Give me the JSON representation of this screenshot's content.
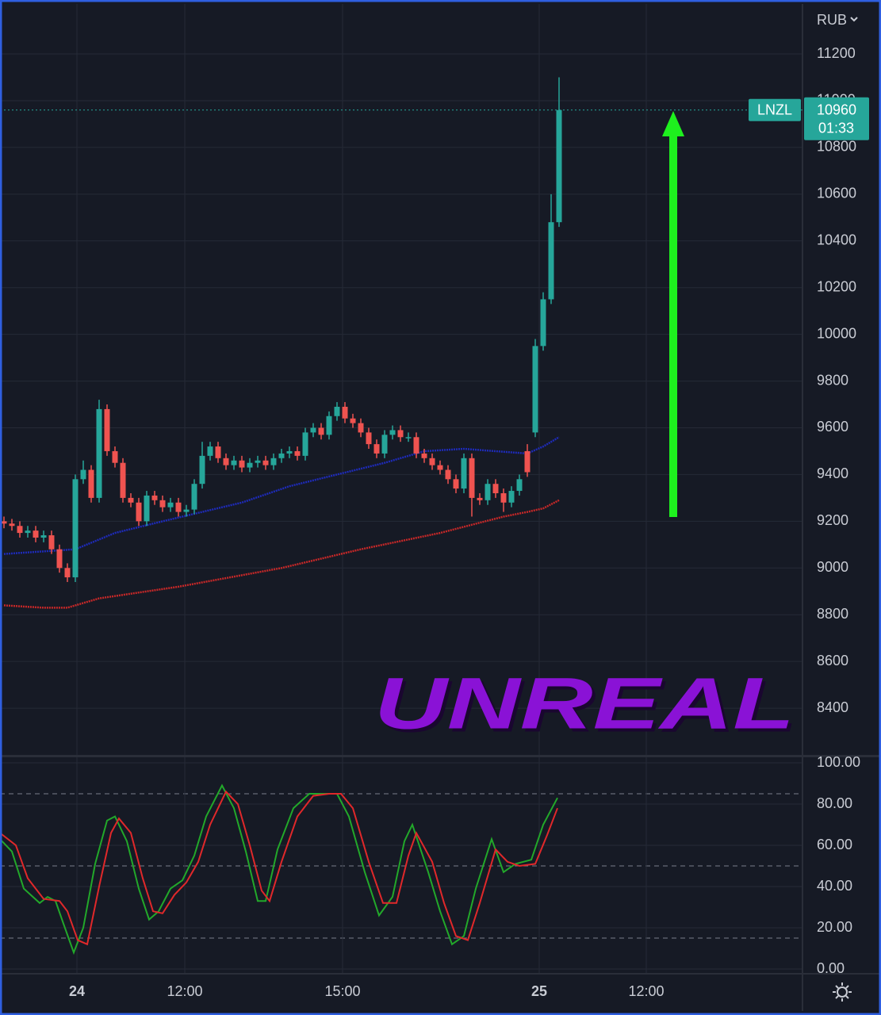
{
  "chart_data": [
    {
      "type": "candlestick",
      "symbol": "LNZL",
      "currency": "RUB",
      "last_price": 10960,
      "countdown": "01:33",
      "annotation": "UNREAL",
      "up_color": "#26a69a",
      "down_color": "#ef5350",
      "xlim": [
        -0.5,
        100.7
      ],
      "ylim": [
        8200,
        11414
      ],
      "yticks": [
        8400,
        8600,
        8800,
        9000,
        9200,
        9400,
        9600,
        9800,
        10000,
        10200,
        10400,
        10600,
        10800,
        11000,
        11200
      ],
      "open": [
        9200,
        9190,
        9180,
        9150,
        9160,
        9130,
        9140,
        9080,
        9000,
        8960,
        9380,
        9420,
        9300,
        9680,
        9500,
        9450,
        9300,
        9280,
        9200,
        9310,
        9290,
        9260,
        9280,
        9240,
        9250,
        9360,
        9480,
        9520,
        9470,
        9440,
        9460,
        9430,
        9450,
        9460,
        9440,
        9470,
        9490,
        9500,
        9480,
        9580,
        9600,
        9570,
        9650,
        9690,
        9640,
        9620,
        9580,
        9530,
        9490,
        9570,
        9590,
        9560,
        9560,
        9490,
        9470,
        9440,
        9420,
        9380,
        9340,
        9470,
        9300,
        9290,
        9360,
        9320,
        9280,
        9330,
        9500,
        9580,
        9950,
        10150,
        10480
      ],
      "high": [
        9220,
        9210,
        9200,
        9180,
        9180,
        9160,
        9160,
        9100,
        9020,
        9400,
        9460,
        9440,
        9720,
        9700,
        9520,
        9470,
        9320,
        9300,
        9330,
        9330,
        9310,
        9300,
        9300,
        9270,
        9380,
        9540,
        9540,
        9540,
        9490,
        9480,
        9480,
        9470,
        9480,
        9480,
        9490,
        9510,
        9520,
        9520,
        9600,
        9620,
        9620,
        9670,
        9710,
        9710,
        9660,
        9640,
        9600,
        9550,
        9590,
        9610,
        9610,
        9580,
        9580,
        9510,
        9490,
        9460,
        9440,
        9400,
        9490,
        9490,
        9320,
        9380,
        9380,
        9340,
        9350,
        9400,
        9530,
        9980,
        10180,
        10600,
        11100
      ],
      "low": [
        9170,
        9160,
        9130,
        9130,
        9110,
        9110,
        9060,
        8980,
        8940,
        8940,
        9360,
        9280,
        9280,
        9480,
        9430,
        9280,
        9260,
        9180,
        9180,
        9270,
        9240,
        9240,
        9220,
        9220,
        9230,
        9340,
        9460,
        9450,
        9420,
        9420,
        9410,
        9410,
        9430,
        9420,
        9420,
        9450,
        9470,
        9460,
        9460,
        9560,
        9550,
        9550,
        9630,
        9620,
        9600,
        9560,
        9510,
        9470,
        9470,
        9550,
        9540,
        9540,
        9470,
        9450,
        9420,
        9400,
        9360,
        9320,
        9320,
        9220,
        9270,
        9270,
        9300,
        9240,
        9260,
        9310,
        9390,
        9560,
        9930,
        10130,
        10460
      ],
      "close": [
        9190,
        9180,
        9150,
        9160,
        9130,
        9140,
        9080,
        9000,
        8960,
        9380,
        9420,
        9300,
        9680,
        9500,
        9450,
        9300,
        9280,
        9200,
        9310,
        9290,
        9260,
        9280,
        9240,
        9250,
        9360,
        9480,
        9520,
        9470,
        9440,
        9460,
        9430,
        9450,
        9460,
        9440,
        9470,
        9490,
        9500,
        9480,
        9580,
        9600,
        9570,
        9650,
        9690,
        9640,
        9620,
        9580,
        9530,
        9490,
        9570,
        9590,
        9560,
        9560,
        9490,
        9470,
        9440,
        9420,
        9380,
        9340,
        9470,
        9300,
        9290,
        9360,
        9320,
        9280,
        9330,
        9380,
        9410,
        9950,
        10150,
        10480,
        10960
      ],
      "lines": [
        {
          "color": "#1e2bb8",
          "x": [
            0,
            9,
            14,
            20,
            25,
            30,
            36,
            42,
            48,
            53,
            58,
            62,
            66,
            68,
            70
          ],
          "values": [
            9060,
            9080,
            9150,
            9200,
            9240,
            9280,
            9350,
            9400,
            9450,
            9500,
            9510,
            9500,
            9490,
            9520,
            9560
          ]
        },
        {
          "color": "#c62828",
          "x": [
            0,
            5,
            8,
            12,
            22,
            35,
            45,
            55,
            63,
            66,
            68,
            70
          ],
          "values": [
            8840,
            8830,
            8830,
            8870,
            8920,
            9000,
            9080,
            9150,
            9220,
            9240,
            9255,
            9290
          ]
        }
      ]
    },
    {
      "type": "line",
      "xlim": [
        -0.5,
        100.7
      ],
      "ylim": [
        -2.3,
        102.7
      ],
      "yticks": [
        {
          "value": 0,
          "label": "0.00"
        },
        {
          "value": 20,
          "label": "20.00"
        },
        {
          "value": 40,
          "label": "40.00"
        },
        {
          "value": 60,
          "label": "60.00"
        },
        {
          "value": 80,
          "label": "80.00"
        },
        {
          "value": 100,
          "label": "100.00"
        }
      ],
      "levels": [
        85,
        50,
        15
      ],
      "xticks": [
        {
          "value": 9.2,
          "label": "24"
        },
        {
          "value": 22.8,
          "label": "12:00"
        },
        {
          "value": 42.7,
          "label": "15:00"
        },
        {
          "value": 67.5,
          "label": "25"
        },
        {
          "value": 81,
          "label": "12:00"
        }
      ],
      "series": [
        {
          "color": "#22a82a",
          "x": [
            -0.5,
            1,
            2.5,
            4.5,
            5.5,
            6.5,
            7.5,
            8.8,
            10,
            11.5,
            13,
            14,
            15.5,
            17,
            18.3,
            19.5,
            21,
            22.5,
            24,
            25.5,
            27.5,
            29,
            30.5,
            32,
            33,
            34.5,
            36.5,
            38.5,
            40.5,
            42,
            43.5,
            45.5,
            47.3,
            49,
            50.5,
            51.5,
            53.5,
            55,
            56.5,
            58,
            59.5,
            61.5,
            63,
            64.5,
            66.5,
            68,
            69.8
          ],
          "values": [
            63,
            57,
            39,
            32,
            35,
            33,
            22,
            8,
            20,
            51,
            72,
            74,
            62,
            39,
            24,
            28,
            39,
            43,
            55,
            74,
            89,
            78,
            57,
            33,
            33,
            58,
            78,
            85,
            85,
            85,
            74,
            47,
            26,
            35,
            62,
            70,
            47,
            28,
            12,
            16,
            39,
            63,
            47,
            51,
            53,
            70,
            83
          ]
        },
        {
          "color": "#e0282a",
          "x": [
            -0.5,
            1.5,
            3,
            5,
            7,
            8,
            9.3,
            10.5,
            12,
            13.5,
            14.5,
            16,
            17.5,
            18.8,
            20,
            21.5,
            23,
            24.5,
            26,
            28,
            29.5,
            31,
            32.5,
            33.5,
            35,
            37,
            39,
            41,
            42.5,
            44,
            46,
            47.8,
            49.5,
            51,
            52,
            54,
            55.5,
            57,
            58.5,
            60,
            62,
            63.5,
            65,
            67,
            68.5,
            69.8
          ],
          "values": [
            66,
            60,
            44,
            34,
            33,
            28,
            14,
            12,
            40,
            66,
            73,
            66,
            44,
            28,
            27,
            36,
            42,
            52,
            70,
            86,
            80,
            60,
            38,
            33,
            52,
            74,
            84,
            85,
            85,
            78,
            52,
            32,
            32,
            55,
            66,
            52,
            32,
            16,
            14,
            32,
            58,
            52,
            50,
            51,
            65,
            78
          ]
        }
      ]
    }
  ]
}
